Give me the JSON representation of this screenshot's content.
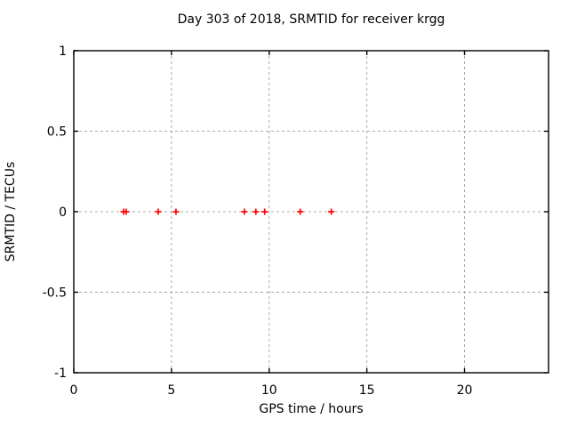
{
  "chart_data": {
    "type": "scatter",
    "title": "Day 303 of 2018, SRMTID for receiver krgg",
    "xlabel": "GPS time / hours",
    "ylabel": "SRMTID / TECUs",
    "xlim": [
      0,
      24.3
    ],
    "ylim": [
      -1,
      1
    ],
    "xticks": [
      0,
      5,
      10,
      15,
      20
    ],
    "yticks": [
      -1,
      -0.5,
      0,
      0.5,
      1
    ],
    "grid": true,
    "legend": "none",
    "series": [
      {
        "name": "SRMTID",
        "marker": "plus",
        "color": "#ff0000",
        "x": [
          2.55,
          2.68,
          4.32,
          5.23,
          8.73,
          9.32,
          9.77,
          11.59,
          13.18
        ],
        "y": [
          0,
          0,
          0,
          0,
          0,
          0,
          0,
          0,
          0
        ]
      }
    ],
    "colors": {
      "background": "#ffffff",
      "border": "#000000",
      "grid": "#a8a8a8",
      "text": "#000000"
    }
  }
}
